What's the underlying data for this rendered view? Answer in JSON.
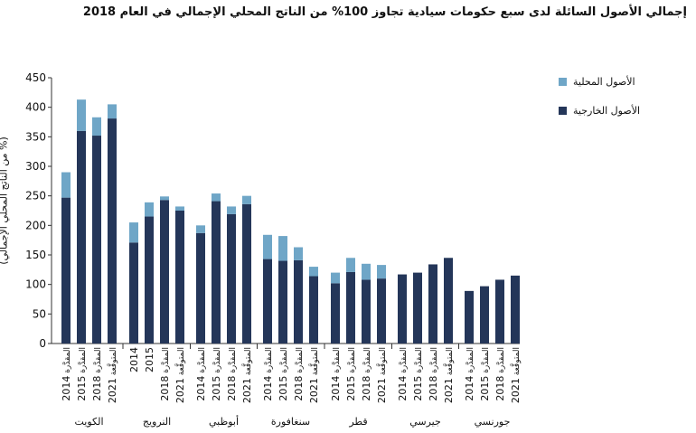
{
  "chart_data": {
    "type": "bar",
    "stacked": true,
    "title": "إجمالي الأصول السائلة لدى سبع حكومات سيادية تجاوز 100% من الناتج المحلي الإجمالي في العام 2018",
    "ylabel": "(% من الناتج المحلي الإجمالي)",
    "xlabel": "",
    "ylim": [
      0,
      450
    ],
    "yticks": [
      0,
      50,
      100,
      150,
      200,
      250,
      300,
      350,
      400,
      450
    ],
    "grid": false,
    "legend_position": "right",
    "series": [
      {
        "name": "الأصول الخارجية",
        "color": "#243659"
      },
      {
        "name": "الأصول المحلية",
        "color": "#6fa6c7"
      }
    ],
    "groups": [
      {
        "label": "الكويت",
        "bars": [
          {
            "x": "2014",
            "x_note": "المقدَّرة",
            "external": 247,
            "domestic": 43
          },
          {
            "x": "2015",
            "x_note": "المقدَّرة",
            "external": 360,
            "domestic": 53
          },
          {
            "x": "2018",
            "x_note": "المقدَّرة",
            "external": 352,
            "domestic": 31
          },
          {
            "x": "2021",
            "x_note": "المتوقَّعة",
            "external": 381,
            "domestic": 24
          }
        ]
      },
      {
        "label": "النرويج",
        "bars": [
          {
            "x": "2014",
            "x_note": "",
            "external": 171,
            "domestic": 34
          },
          {
            "x": "2015",
            "x_note": "",
            "external": 215,
            "domestic": 24
          },
          {
            "x": "2018",
            "x_note": "المقدَّرة",
            "external": 243,
            "domestic": 6
          },
          {
            "x": "2021",
            "x_note": "المتوقَّعة",
            "external": 225,
            "domestic": 7
          }
        ]
      },
      {
        "label": "أبوظبي",
        "bars": [
          {
            "x": "2014",
            "x_note": "المقدَّرة",
            "external": 187,
            "domestic": 13
          },
          {
            "x": "2015",
            "x_note": "المقدَّرة",
            "external": 241,
            "domestic": 13
          },
          {
            "x": "2018",
            "x_note": "المقدَّرة",
            "external": 219,
            "domestic": 13
          },
          {
            "x": "2021",
            "x_note": "المتوقَّعة",
            "external": 236,
            "domestic": 14
          }
        ]
      },
      {
        "label": "سنغافورة",
        "bars": [
          {
            "x": "2014",
            "x_note": "المقدَّرة",
            "external": 143,
            "domestic": 41
          },
          {
            "x": "2015",
            "x_note": "المقدَّرة",
            "external": 140,
            "domestic": 42
          },
          {
            "x": "2018",
            "x_note": "المقدَّرة",
            "external": 141,
            "domestic": 22
          },
          {
            "x": "2021",
            "x_note": "المتوقَّعة",
            "external": 114,
            "domestic": 16
          }
        ]
      },
      {
        "label": "قطر",
        "bars": [
          {
            "x": "2014",
            "x_note": "المقدَّرة",
            "external": 102,
            "domestic": 18
          },
          {
            "x": "2015",
            "x_note": "المقدَّرة",
            "external": 121,
            "domestic": 24
          },
          {
            "x": "2018",
            "x_note": "المقدَّرة",
            "external": 108,
            "domestic": 27
          },
          {
            "x": "2021",
            "x_note": "المتوقَّعة",
            "external": 110,
            "domestic": 23
          }
        ]
      },
      {
        "label": "جيرسي",
        "bars": [
          {
            "x": "2014",
            "x_note": "المقدَّرة",
            "external": 117,
            "domestic": 0
          },
          {
            "x": "2015",
            "x_note": "المقدَّرة",
            "external": 120,
            "domestic": 0
          },
          {
            "x": "2018",
            "x_note": "المقدَّرة",
            "external": 134,
            "domestic": 0
          },
          {
            "x": "2021",
            "x_note": "المتوقَّعة",
            "external": 145,
            "domestic": 0
          }
        ]
      },
      {
        "label": "جورنسي",
        "bars": [
          {
            "x": "2014",
            "x_note": "المقدَّرة",
            "external": 89,
            "domestic": 0
          },
          {
            "x": "2015",
            "x_note": "المقدَّرة",
            "external": 97,
            "domestic": 0
          },
          {
            "x": "2018",
            "x_note": "المقدَّرة",
            "external": 108,
            "domestic": 0
          },
          {
            "x": "2021",
            "x_note": "المتوقَّعة",
            "external": 115,
            "domestic": 0
          }
        ]
      }
    ]
  }
}
